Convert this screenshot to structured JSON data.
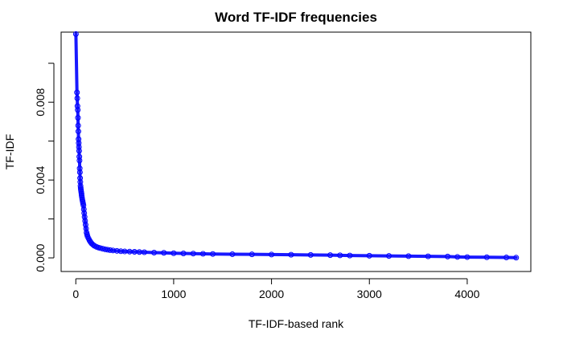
{
  "chart_data": {
    "type": "scatter",
    "title": "Word TF-IDF frequencies",
    "xlabel": "TF-IDF-based rank",
    "ylabel": "TF-IDF",
    "xlim": [
      -150,
      4650
    ],
    "ylim": [
      -0.0007,
      0.0116
    ],
    "xticks": [
      0,
      1000,
      2000,
      3000,
      4000
    ],
    "xtick_labels": [
      "0",
      "1000",
      "2000",
      "3000",
      "4000"
    ],
    "yticks": [
      0.0,
      0.002,
      0.004,
      0.006,
      0.008,
      0.01
    ],
    "ytick_labels": [
      "0.000",
      "",
      "0.004",
      "",
      "0.008",
      ""
    ],
    "grid": false,
    "point_color": "#0000ff",
    "marker": "open-circle",
    "series": [
      {
        "x": [
          1,
          12,
          15,
          17,
          20,
          22,
          24,
          26,
          28,
          30,
          32,
          34,
          36,
          38,
          40,
          42,
          44,
          46,
          48,
          50,
          52,
          55,
          58,
          60,
          63,
          66,
          70,
          74,
          78,
          82,
          86,
          90,
          95,
          100,
          105,
          110,
          115,
          120,
          130,
          140,
          150,
          160,
          175,
          190,
          210,
          230,
          250,
          275,
          300,
          325,
          350,
          380,
          420,
          460,
          500,
          550,
          600,
          650,
          700,
          800,
          900,
          1000,
          1100,
          1200,
          1300,
          1400,
          1600,
          1800,
          2000,
          2200,
          2400,
          2600,
          2700,
          2800,
          3000,
          3200,
          3400,
          3600,
          3800,
          3900,
          4000,
          4200,
          4400,
          4500
        ],
        "y": [
          0.0115,
          0.0085,
          0.0082,
          0.0078,
          0.0076,
          0.0072,
          0.0068,
          0.0065,
          0.0061,
          0.0059,
          0.0057,
          0.0055,
          0.0052,
          0.005,
          0.0046,
          0.0044,
          0.0041,
          0.0039,
          0.0037,
          0.0036,
          0.0035,
          0.0034,
          0.0033,
          0.0032,
          0.0031,
          0.003,
          0.0029,
          0.0028,
          0.0027,
          0.0025,
          0.0023,
          0.0021,
          0.0019,
          0.0017,
          0.0015,
          0.0013,
          0.0012,
          0.0011,
          0.001,
          0.0009,
          0.00082,
          0.00075,
          0.00068,
          0.00062,
          0.00057,
          0.00053,
          0.0005,
          0.00047,
          0.00044,
          0.00042,
          0.0004,
          0.00038,
          0.00036,
          0.00034,
          0.00033,
          0.00032,
          0.00031,
          0.0003,
          0.00029,
          0.00027,
          0.00026,
          0.00024,
          0.00023,
          0.00022,
          0.00021,
          0.0002,
          0.00019,
          0.00018,
          0.00017,
          0.00016,
          0.00015,
          0.00014,
          0.00013,
          0.00012,
          0.00011,
          0.0001,
          9e-05,
          8e-05,
          7e-05,
          5e-05,
          4e-05,
          3e-05,
          2e-05,
          1e-05
        ]
      }
    ]
  }
}
